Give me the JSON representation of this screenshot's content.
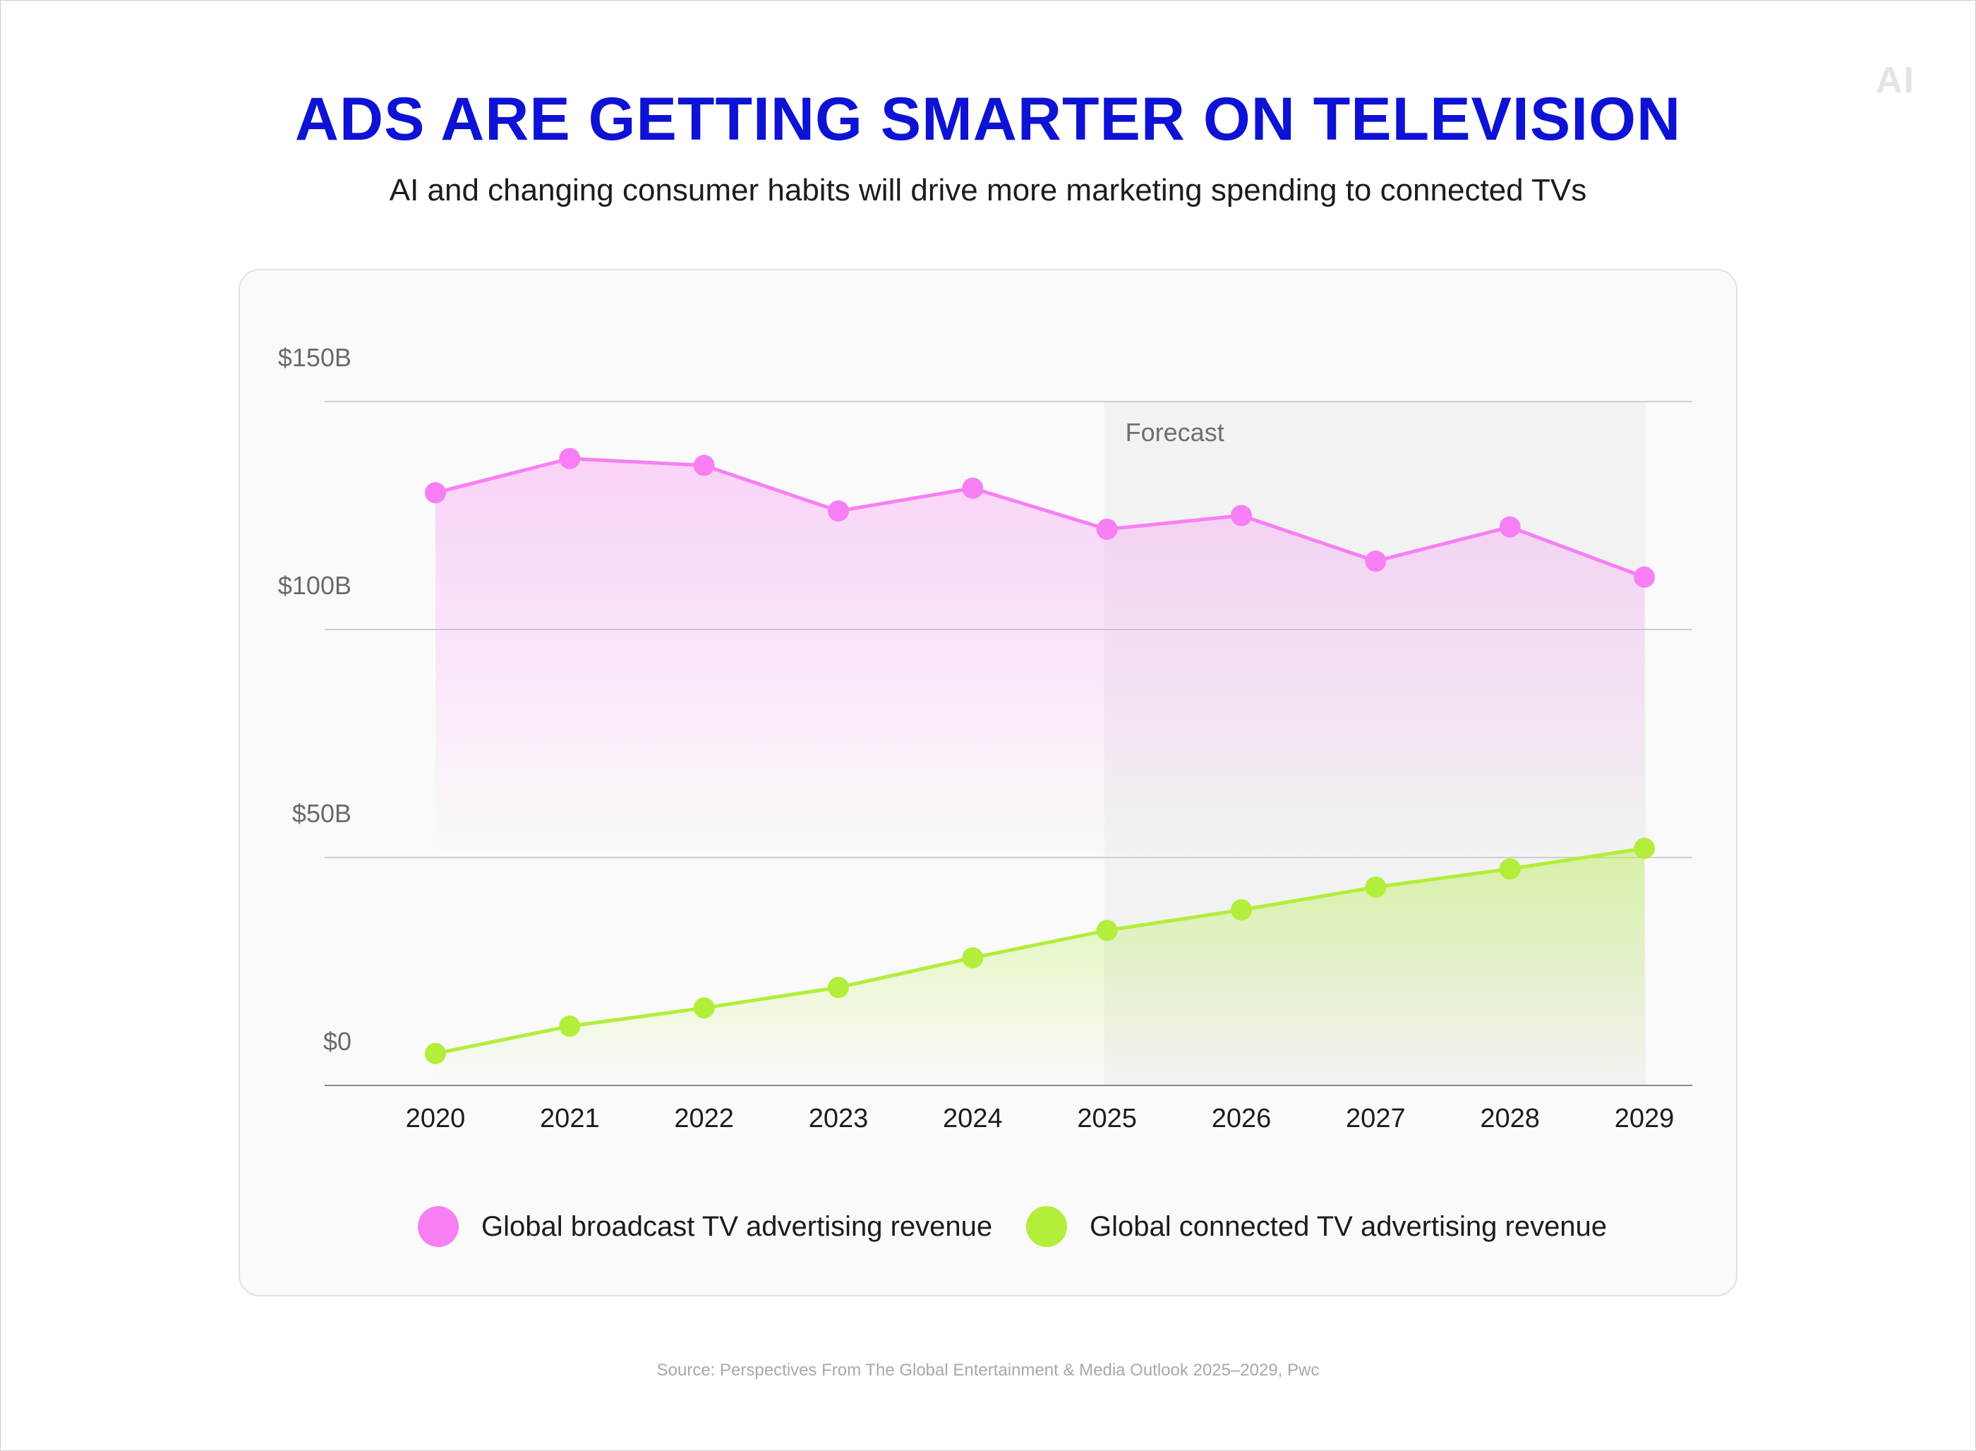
{
  "brand": {
    "logo_text": "AI"
  },
  "header": {
    "title": "ADS ARE GETTING SMARTER ON TELEVISION",
    "subtitle": "AI and changing consumer habits will drive more marketing spending to connected TVs"
  },
  "source": "Source: Perspectives From The Global Entertainment & Media Outlook 2025–2029, Pwc",
  "colors": {
    "title": "#0d12d4",
    "broadcast": "#f77ff3",
    "connected": "#b2ee3a",
    "forecast_band": "#f2f2f2",
    "grid": "#cfcfcf"
  },
  "chart_data": {
    "type": "line",
    "title": "ADS ARE GETTING SMARTER ON TELEVISION",
    "xlabel": "",
    "ylabel": "",
    "categories": [
      "2020",
      "2021",
      "2022",
      "2023",
      "2024",
      "2025",
      "2026",
      "2027",
      "2028",
      "2029"
    ],
    "y_ticks": [
      0,
      50,
      100,
      150
    ],
    "y_tick_labels": [
      "$0",
      "$50B",
      "$100B",
      "$150B"
    ],
    "ylim": [
      0,
      150
    ],
    "grid": true,
    "area_fill": true,
    "forecast": {
      "label": "Forecast",
      "from": "2025",
      "to": "2029"
    },
    "series": [
      {
        "name": "Global broadcast TV advertising revenue",
        "color": "#f77ff3",
        "values": [
          130,
          137.5,
          136,
          126,
          131,
          122,
          125,
          115,
          122.5,
          111.5
        ]
      },
      {
        "name": "Global connected TV advertising revenue",
        "color": "#b2ee3a",
        "values": [
          7,
          13,
          17,
          21.5,
          28,
          34,
          38.5,
          43.5,
          47.5,
          52
        ]
      }
    ],
    "legend": "bottom"
  }
}
